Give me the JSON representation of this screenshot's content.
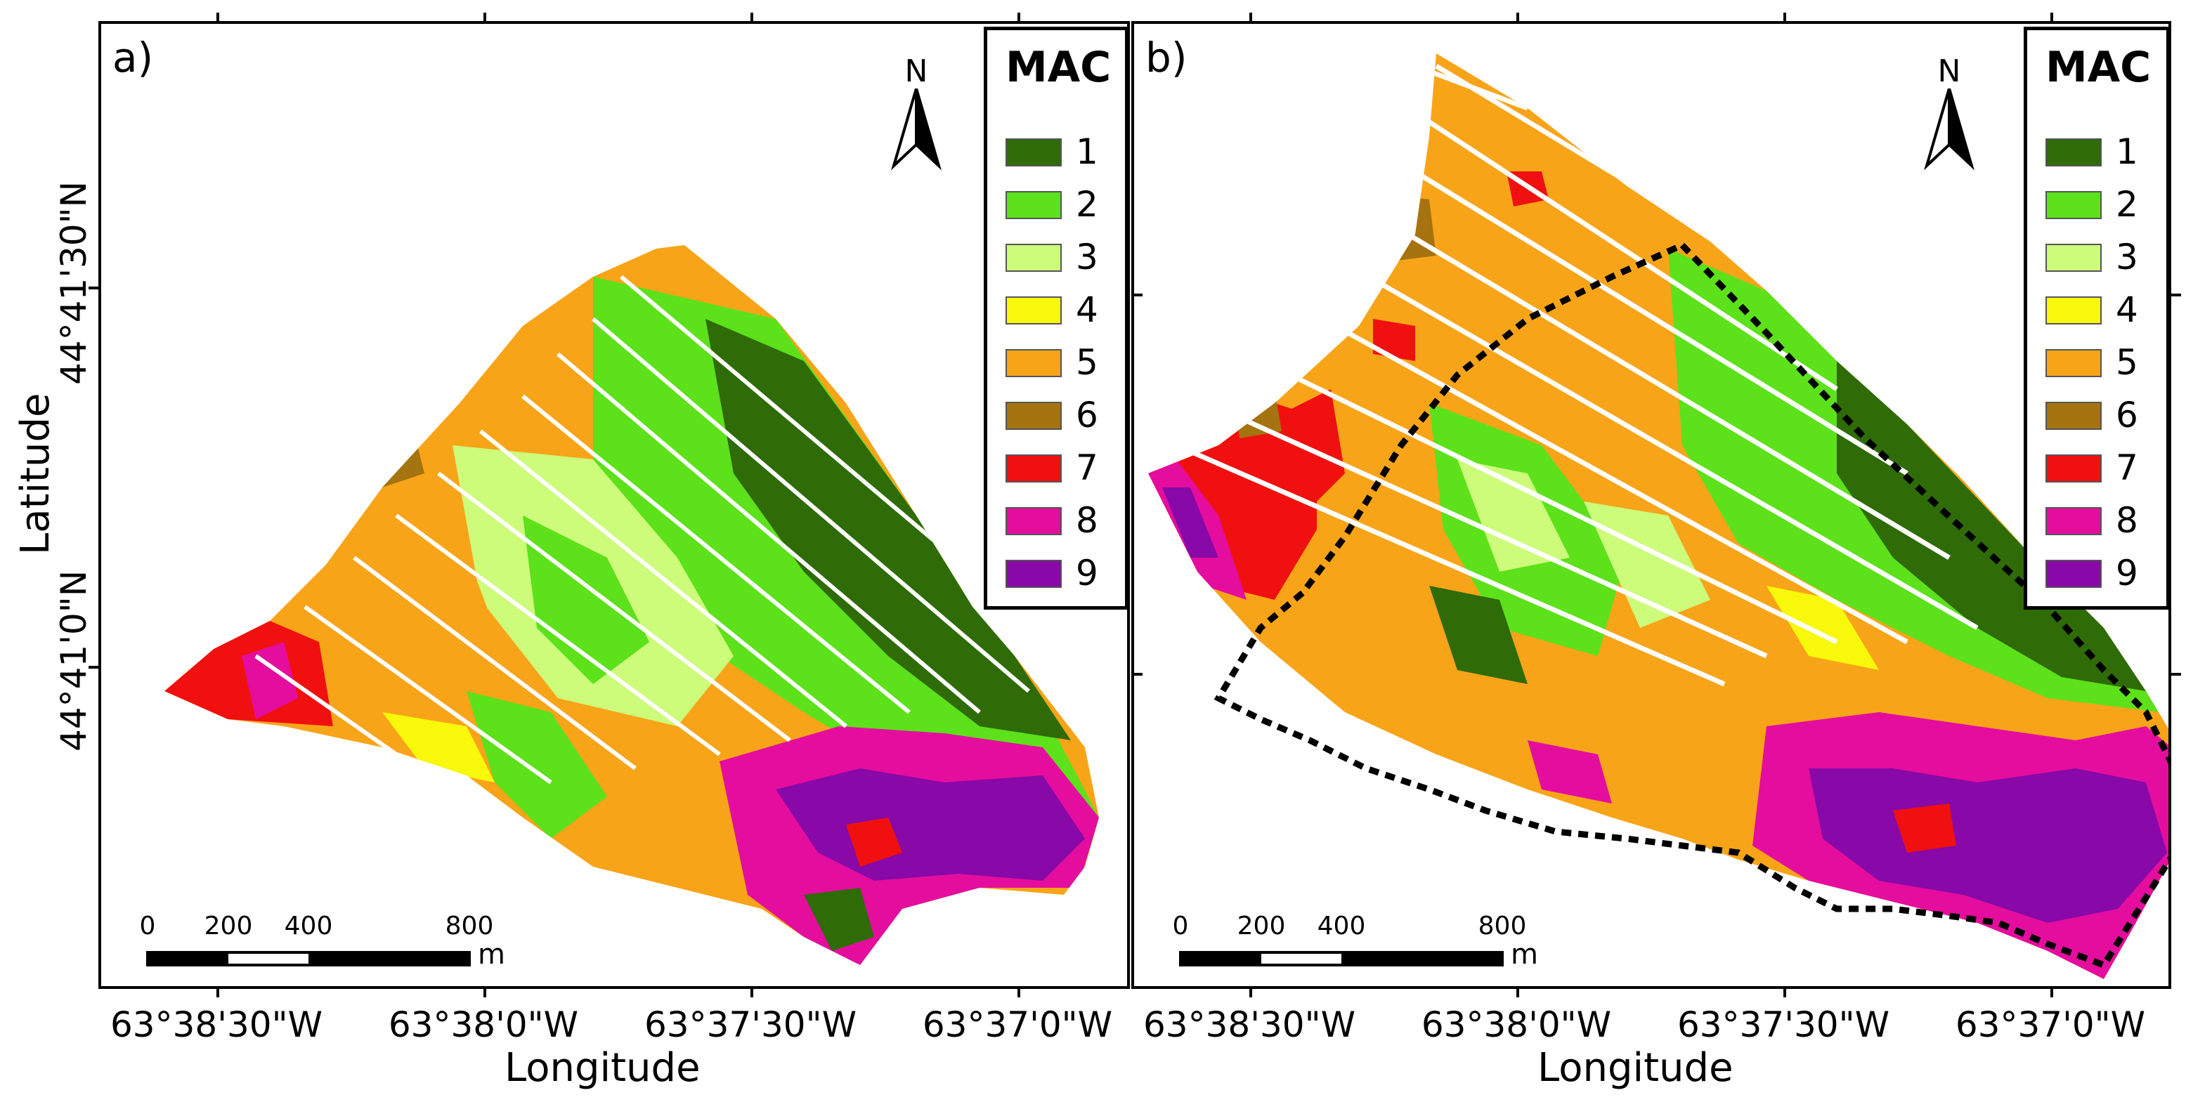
{
  "panels": [
    {
      "label": "a)",
      "north": "N",
      "legend": {
        "title": "MAC",
        "items": [
          {
            "label": "1",
            "color": "#2f6b06"
          },
          {
            "label": "2",
            "color": "#5ce11a"
          },
          {
            "label": "3",
            "color": "#cdfb7a"
          },
          {
            "label": "4",
            "color": "#f8f80a"
          },
          {
            "label": "5",
            "color": "#f8a419"
          },
          {
            "label": "6",
            "color": "#a57310"
          },
          {
            "label": "7",
            "color": "#f01010"
          },
          {
            "label": "8",
            "color": "#e40d9e"
          },
          {
            "label": "9",
            "color": "#8808a8"
          }
        ]
      },
      "scalebar": {
        "ticks": [
          "0",
          "200",
          "400",
          "800"
        ],
        "unit": "m"
      }
    },
    {
      "label": "b)",
      "north": "N",
      "legend": {
        "title": "MAC",
        "items": [
          {
            "label": "1",
            "color": "#2f6b06"
          },
          {
            "label": "2",
            "color": "#5ce11a"
          },
          {
            "label": "3",
            "color": "#cdfb7a"
          },
          {
            "label": "4",
            "color": "#f8f80a"
          },
          {
            "label": "5",
            "color": "#f8a419"
          },
          {
            "label": "6",
            "color": "#a57310"
          },
          {
            "label": "7",
            "color": "#f01010"
          },
          {
            "label": "8",
            "color": "#e40d9e"
          },
          {
            "label": "9",
            "color": "#8808a8"
          }
        ]
      },
      "scalebar": {
        "ticks": [
          "0",
          "200",
          "400",
          "800"
        ],
        "unit": "m"
      }
    }
  ],
  "x_ticks_a": [
    "63°38'30\"W",
    "63°38'0\"W",
    "63°37'30\"W",
    "63°37'0\"W"
  ],
  "x_ticks_b": [
    "63°38'30\"W",
    "63°38'0\"W",
    "63°37'30\"W",
    "63°37'0\"W"
  ],
  "y_ticks": [
    "44°41'30\"N",
    "44°41'0\"N"
  ],
  "x_axis_title": "Longitude",
  "y_axis_title": "Latitude"
}
